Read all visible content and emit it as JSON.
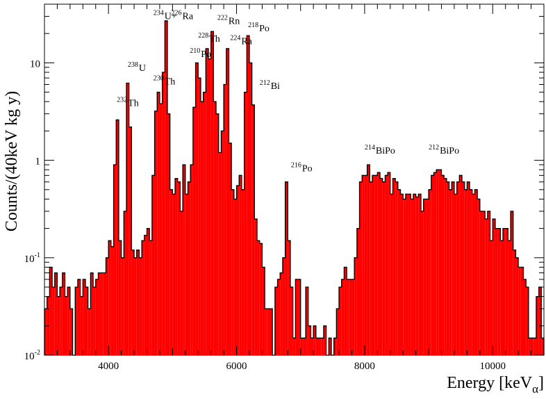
{
  "chart_data": {
    "type": "histogram",
    "xlabel": "Energy [keV",
    "xlabel_sub": "α",
    "xlabel_close": "]",
    "ylabel": "Counts/(40keV kg y)",
    "xlim": [
      3000,
      10800
    ],
    "ylim": [
      0.01,
      40
    ],
    "yscale": "log",
    "bin_width": 40,
    "fill_color": "#ff0000",
    "edge_color": "#000000",
    "x_ticks": [
      4000,
      6000,
      8000,
      10000
    ],
    "x_tick_labels": [
      "4000",
      "6000",
      "8000",
      "10000"
    ],
    "y_ticks": [
      {
        "value": 0.01,
        "base": "10",
        "exp": "-2"
      },
      {
        "value": 0.1,
        "base": "10",
        "exp": "-1"
      },
      {
        "value": 1,
        "base": "1",
        "exp": ""
      },
      {
        "value": 10,
        "base": "10",
        "exp": ""
      }
    ],
    "bins": [
      [
        3000,
        0.03
      ],
      [
        3040,
        0.04
      ],
      [
        3080,
        0.08
      ],
      [
        3120,
        0.05
      ],
      [
        3160,
        0.07
      ],
      [
        3200,
        0.04
      ],
      [
        3240,
        0.05
      ],
      [
        3280,
        0.07
      ],
      [
        3320,
        0.04
      ],
      [
        3360,
        0.05
      ],
      [
        3400,
        0.03
      ],
      [
        3440,
        0.01
      ],
      [
        3480,
        0.05
      ],
      [
        3520,
        0.06
      ],
      [
        3560,
        0.04
      ],
      [
        3600,
        0.06
      ],
      [
        3640,
        0.05
      ],
      [
        3680,
        0.03
      ],
      [
        3720,
        0.07
      ],
      [
        3760,
        0.05
      ],
      [
        3800,
        0.06
      ],
      [
        3840,
        0.07
      ],
      [
        3880,
        0.07
      ],
      [
        3920,
        0.07
      ],
      [
        3960,
        0.1
      ],
      [
        4000,
        0.15
      ],
      [
        4040,
        0.13
      ],
      [
        4080,
        0.9
      ],
      [
        4120,
        2.6
      ],
      [
        4160,
        0.15
      ],
      [
        4200,
        0.1
      ],
      [
        4240,
        0.3
      ],
      [
        4280,
        6.2
      ],
      [
        4320,
        2.2
      ],
      [
        4360,
        0.12
      ],
      [
        4400,
        0.1
      ],
      [
        4440,
        0.12
      ],
      [
        4480,
        0.1
      ],
      [
        4520,
        0.15
      ],
      [
        4560,
        0.17
      ],
      [
        4600,
        0.2
      ],
      [
        4640,
        0.15
      ],
      [
        4680,
        0.7
      ],
      [
        4720,
        3.2
      ],
      [
        4760,
        5
      ],
      [
        4800,
        3.8
      ],
      [
        4840,
        8
      ],
      [
        4880,
        27
      ],
      [
        4920,
        3
      ],
      [
        4960,
        0.5
      ],
      [
        5000,
        0.45
      ],
      [
        5040,
        0.65
      ],
      [
        5080,
        0.6
      ],
      [
        5120,
        0.3
      ],
      [
        5160,
        0.9
      ],
      [
        5200,
        0.45
      ],
      [
        5240,
        0.6
      ],
      [
        5280,
        0.9
      ],
      [
        5320,
        3.5
      ],
      [
        5360,
        10
      ],
      [
        5400,
        7
      ],
      [
        5440,
        4
      ],
      [
        5480,
        5
      ],
      [
        5520,
        14
      ],
      [
        5560,
        11
      ],
      [
        5600,
        21
      ],
      [
        5640,
        4
      ],
      [
        5680,
        3
      ],
      [
        5720,
        1.2
      ],
      [
        5760,
        2
      ],
      [
        5800,
        6
      ],
      [
        5840,
        14
      ],
      [
        5880,
        1.5
      ],
      [
        5920,
        0.5
      ],
      [
        5960,
        0.4
      ],
      [
        6000,
        0.55
      ],
      [
        6040,
        0.7
      ],
      [
        6080,
        0.5
      ],
      [
        6120,
        5
      ],
      [
        6160,
        19
      ],
      [
        6200,
        10
      ],
      [
        6240,
        3.7
      ],
      [
        6280,
        0.25
      ],
      [
        6320,
        0.15
      ],
      [
        6360,
        0.14
      ],
      [
        6400,
        0.08
      ],
      [
        6440,
        0.03
      ],
      [
        6480,
        0.03
      ],
      [
        6520,
        0.03
      ],
      [
        6560,
        0.01
      ],
      [
        6600,
        0.05
      ],
      [
        6640,
        0.06
      ],
      [
        6680,
        0.07
      ],
      [
        6720,
        0.1
      ],
      [
        6760,
        0.6
      ],
      [
        6800,
        0.15
      ],
      [
        6840,
        0.05
      ],
      [
        6880,
        0.015
      ],
      [
        6920,
        0.06
      ],
      [
        6960,
        0.06
      ],
      [
        7000,
        0.015
      ],
      [
        7040,
        0.015
      ],
      [
        7080,
        0.05
      ],
      [
        7120,
        0.02
      ],
      [
        7160,
        0.015
      ],
      [
        7200,
        0.02
      ],
      [
        7240,
        0.015
      ],
      [
        7280,
        0.015
      ],
      [
        7320,
        0.015
      ],
      [
        7360,
        0.02
      ],
      [
        7400,
        0.01
      ],
      [
        7440,
        0.015
      ],
      [
        7480,
        0.01
      ],
      [
        7520,
        0.015
      ],
      [
        7560,
        0.03
      ],
      [
        7600,
        0.05
      ],
      [
        7640,
        0.06
      ],
      [
        7680,
        0.08
      ],
      [
        7720,
        0.06
      ],
      [
        7760,
        0.06
      ],
      [
        7800,
        0.06
      ],
      [
        7840,
        0.1
      ],
      [
        7880,
        0.2
      ],
      [
        7920,
        0.6
      ],
      [
        7960,
        0.7
      ],
      [
        8000,
        0.7
      ],
      [
        8040,
        0.9
      ],
      [
        8080,
        0.6
      ],
      [
        8120,
        0.7
      ],
      [
        8160,
        0.7
      ],
      [
        8200,
        0.75
      ],
      [
        8240,
        0.65
      ],
      [
        8280,
        0.6
      ],
      [
        8320,
        0.7
      ],
      [
        8360,
        0.75
      ],
      [
        8400,
        0.45
      ],
      [
        8440,
        0.65
      ],
      [
        8480,
        0.6
      ],
      [
        8520,
        0.5
      ],
      [
        8560,
        0.45
      ],
      [
        8600,
        0.4
      ],
      [
        8640,
        0.45
      ],
      [
        8680,
        0.45
      ],
      [
        8720,
        0.4
      ],
      [
        8760,
        0.45
      ],
      [
        8800,
        0.42
      ],
      [
        8840,
        0.45
      ],
      [
        8880,
        0.3
      ],
      [
        8920,
        0.4
      ],
      [
        8960,
        0.4
      ],
      [
        9000,
        0.5
      ],
      [
        9040,
        0.7
      ],
      [
        9080,
        0.75
      ],
      [
        9120,
        0.8
      ],
      [
        9160,
        0.8
      ],
      [
        9200,
        0.7
      ],
      [
        9240,
        0.65
      ],
      [
        9280,
        0.6
      ],
      [
        9320,
        0.5
      ],
      [
        9360,
        0.6
      ],
      [
        9400,
        0.45
      ],
      [
        9440,
        0.6
      ],
      [
        9480,
        0.7
      ],
      [
        9520,
        0.6
      ],
      [
        9560,
        0.5
      ],
      [
        9600,
        0.6
      ],
      [
        9640,
        0.5
      ],
      [
        9680,
        0.45
      ],
      [
        9720,
        0.5
      ],
      [
        9760,
        0.4
      ],
      [
        9800,
        0.3
      ],
      [
        9840,
        0.3
      ],
      [
        9880,
        0.25
      ],
      [
        9920,
        0.3
      ],
      [
        9960,
        0.15
      ],
      [
        10000,
        0.25
      ],
      [
        10040,
        0.2
      ],
      [
        10080,
        0.2
      ],
      [
        10120,
        0.15
      ],
      [
        10160,
        0.2
      ],
      [
        10200,
        0.2
      ],
      [
        10240,
        0.15
      ],
      [
        10280,
        0.3
      ],
      [
        10320,
        0.12
      ],
      [
        10360,
        0.1
      ],
      [
        10400,
        0.08
      ],
      [
        10440,
        0.08
      ],
      [
        10480,
        0.06
      ],
      [
        10520,
        0.05
      ],
      [
        10560,
        0.015
      ],
      [
        10600,
        0.015
      ],
      [
        10640,
        0.015
      ],
      [
        10680,
        0.04
      ],
      [
        10720,
        0.05
      ],
      [
        10760,
        0.015
      ]
    ],
    "annotations": [
      {
        "mass": "232",
        "element": "Th",
        "x": 4130,
        "y": 3.6
      },
      {
        "mass": "238",
        "element": "U",
        "x": 4300,
        "y": 8.3
      },
      {
        "mass": "230",
        "element": "Th",
        "x": 4700,
        "y": 6.0
      },
      {
        "mass": "234",
        "element": "U+",
        "x": 4700,
        "y": 28
      },
      {
        "mass": "226",
        "element": "Ra",
        "x": 4980,
        "y": 28
      },
      {
        "mass": "228",
        "element": "Th",
        "x": 5400,
        "y": 16.5
      },
      {
        "mass": "210",
        "element": "Po",
        "x": 5270,
        "y": 11.5
      },
      {
        "mass": "222",
        "element": "Rn",
        "x": 5700,
        "y": 25
      },
      {
        "mass": "224",
        "element": "Ra",
        "x": 5900,
        "y": 15.5
      },
      {
        "mass": "218",
        "element": "Po",
        "x": 6180,
        "y": 21
      },
      {
        "mass": "212",
        "element": "Bi",
        "x": 6360,
        "y": 5.4
      },
      {
        "mass": "216",
        "element": "Po",
        "x": 6850,
        "y": 0.77
      },
      {
        "mass": "214",
        "element": "BiPo",
        "x": 8000,
        "y": 1.17
      },
      {
        "mass": "212",
        "element": "BiPo",
        "x": 9000,
        "y": 1.17
      }
    ]
  }
}
